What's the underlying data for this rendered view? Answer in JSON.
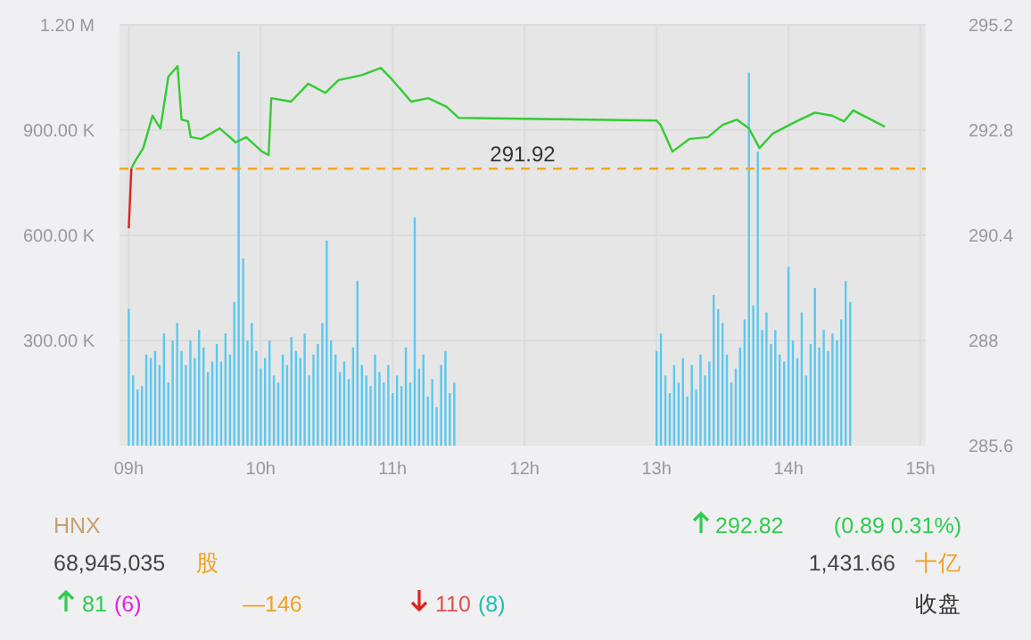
{
  "chart_data": {
    "type": "bar",
    "xlim": [
      8.93,
      15.04
    ],
    "xticks": [
      {
        "value": 9,
        "label": "09h"
      },
      {
        "value": 10,
        "label": "10h"
      },
      {
        "value": 11,
        "label": "11h"
      },
      {
        "value": 12,
        "label": "12h"
      },
      {
        "value": 13,
        "label": "13h"
      },
      {
        "value": 14,
        "label": "14h"
      },
      {
        "value": 15,
        "label": "15h"
      }
    ],
    "ylim": [
      0,
      1200000
    ],
    "yticks": [
      {
        "value": 300000,
        "label": "300.00 K"
      },
      {
        "value": 600000,
        "label": "600.00 K"
      },
      {
        "value": 900000,
        "label": "900.00 K"
      },
      {
        "value": 1200000,
        "label": "1.20 M"
      }
    ],
    "y2lim": [
      285.6,
      295.2
    ],
    "y2ticks": [
      285.6,
      288,
      290.4,
      292.8,
      295.2
    ],
    "grid": true,
    "series": [
      {
        "color": "#5bc8ef",
        "x": [
          9,
          9.033,
          9.067,
          9.1,
          9.133,
          9.167,
          9.2,
          9.233,
          9.267,
          9.3,
          9.333,
          9.367,
          9.4,
          9.433,
          9.467,
          9.5,
          9.533,
          9.567,
          9.6,
          9.633,
          9.667,
          9.7,
          9.733,
          9.767,
          9.8,
          9.833,
          9.867,
          9.9,
          9.933,
          9.967,
          10,
          10.033,
          10.067,
          10.1,
          10.133,
          10.167,
          10.2,
          10.233,
          10.267,
          10.3,
          10.333,
          10.367,
          10.4,
          10.433,
          10.467,
          10.5,
          10.533,
          10.567,
          10.6,
          10.633,
          10.667,
          10.7,
          10.733,
          10.767,
          10.8,
          10.833,
          10.867,
          10.9,
          10.933,
          10.967,
          11,
          11.033,
          11.067,
          11.1,
          11.133,
          11.167,
          11.2,
          11.233,
          11.267,
          11.3,
          11.333,
          11.367,
          11.4,
          11.433,
          11.467,
          13,
          13.033,
          13.067,
          13.1,
          13.133,
          13.167,
          13.2,
          13.233,
          13.267,
          13.3,
          13.333,
          13.367,
          13.4,
          13.433,
          13.467,
          13.5,
          13.533,
          13.567,
          13.6,
          13.633,
          13.667,
          13.7,
          13.733,
          13.767,
          13.8,
          13.833,
          13.867,
          13.9,
          13.933,
          13.967,
          14,
          14.033,
          14.067,
          14.1,
          14.133,
          14.167,
          14.2,
          14.233,
          14.267,
          14.3,
          14.333,
          14.367,
          14.4,
          14.433,
          14.467
        ],
        "values": [
          390000,
          200000,
          160000,
          170000,
          260000,
          250000,
          270000,
          230000,
          320000,
          180000,
          300000,
          350000,
          270000,
          230000,
          300000,
          250000,
          330000,
          280000,
          210000,
          240000,
          290000,
          240000,
          320000,
          260000,
          410000,
          1124000,
          534000,
          300000,
          350000,
          270000,
          220000,
          250000,
          300000,
          200000,
          180000,
          260000,
          230000,
          310000,
          270000,
          250000,
          320000,
          200000,
          260000,
          290000,
          350000,
          585000,
          300000,
          260000,
          210000,
          240000,
          190000,
          280000,
          470000,
          230000,
          200000,
          170000,
          260000,
          210000,
          180000,
          230000,
          150000,
          200000,
          170000,
          280000,
          180000,
          651000,
          220000,
          260000,
          140000,
          190000,
          110000,
          230000,
          270000,
          150000,
          180000,
          270000,
          320000,
          200000,
          150000,
          230000,
          180000,
          250000,
          140000,
          230000,
          160000,
          260000,
          200000,
          240000,
          430000,
          390000,
          350000,
          260000,
          180000,
          220000,
          280000,
          360000,
          1064000,
          400000,
          839000,
          330000,
          380000,
          290000,
          330000,
          260000,
          240000,
          510000,
          300000,
          250000,
          380000,
          200000,
          290000,
          450000,
          280000,
          330000,
          270000,
          320000,
          300000,
          360000,
          470000,
          410000
        ]
      },
      {
        "type": "line",
        "axis": "y2",
        "color": "#e0201a",
        "x": [
          9,
          9.02
        ],
        "values": [
          290.56,
          291.93
        ]
      },
      {
        "type": "line",
        "axis": "y2",
        "color": "#33cc33",
        "x": [
          9.02,
          9.05,
          9.11,
          9.18,
          9.24,
          9.3,
          9.37,
          9.4,
          9.45,
          9.47,
          9.55,
          9.69,
          9.81,
          9.89,
          10.01,
          10.06,
          10.08,
          10.23,
          10.36,
          10.49,
          10.59,
          10.77,
          10.91,
          11,
          11.14,
          11.27,
          11.41,
          11.5,
          13,
          13.03,
          13.12,
          13.25,
          13.39,
          13.5,
          13.61,
          13.7,
          13.78,
          13.88,
          14.06,
          14.2,
          14.33,
          14.42,
          14.49,
          14.73
        ],
        "values": [
          291.93,
          292.1,
          292.39,
          293.13,
          292.84,
          294.02,
          294.26,
          293.04,
          293,
          292.64,
          292.6,
          292.84,
          292.52,
          292.64,
          292.31,
          292.23,
          293.53,
          293.45,
          293.86,
          293.65,
          293.94,
          294.06,
          294.22,
          293.94,
          293.45,
          293.53,
          293.33,
          293.08,
          293.02,
          292.92,
          292.31,
          292.6,
          292.64,
          292.92,
          293.04,
          292.84,
          292.39,
          292.72,
          293,
          293.2,
          293.13,
          293,
          293.25,
          292.88
        ]
      }
    ],
    "ref_lines": [
      {
        "axis": "y2",
        "value": 291.92,
        "label": "291.92",
        "color": "#f5a623",
        "line_style": "dashed"
      }
    ],
    "annotations": [
      "HNX",
      "68,945,035",
      "股",
      "292.82",
      "(0.89 0.31%)",
      "1,431.66",
      "十亿",
      "81",
      "(6)",
      "—146",
      "110",
      "(8)",
      "收盘"
    ]
  }
}
